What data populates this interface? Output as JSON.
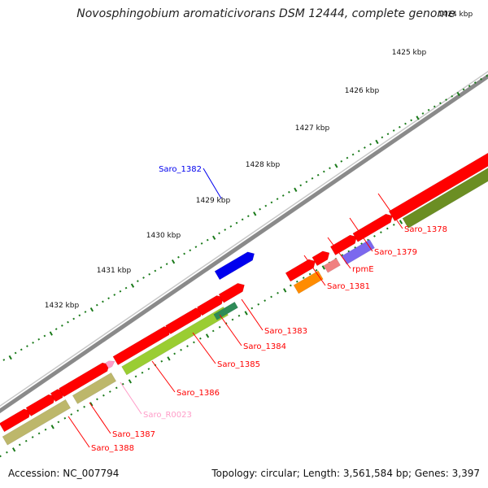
{
  "title": "Novosphingobium aromaticivorans DSM 12444, complete genome",
  "footer": {
    "accession": "Accession: NC_007794",
    "summary": "Topology: circular; Length: 3,561,584 bp; Genes: 3,397"
  },
  "ticks": [
    "1424 kbp",
    "1425 kbp",
    "1426 kbp",
    "1427 kbp",
    "1428 kbp",
    "1429 kbp",
    "1430 kbp",
    "1431 kbp",
    "1432 kbp"
  ],
  "colors": {
    "backbone": "#8a8a8a",
    "cds": "#ff0000",
    "rna": "#ff9cc8",
    "cds_track": "#9acd32",
    "blue": "#0000ee",
    "orange": "#ff8c00",
    "purple": "#7b68ee",
    "pink": "#f08080",
    "olive": "#6b8e23",
    "khaki": "#bdb76b",
    "dark_green": "#2e8b57",
    "dotted_green": "#1a7a1a"
  },
  "genes": [
    {
      "name": "Saro_1378",
      "color": "#ff0000"
    },
    {
      "name": "Saro_1379",
      "color": "#ff0000"
    },
    {
      "name": "rpmE",
      "color": "#ff0000"
    },
    {
      "name": "Saro_1381",
      "color": "#ff0000"
    },
    {
      "name": "Saro_1382",
      "color": "#0000ee"
    },
    {
      "name": "Saro_1383",
      "color": "#ff0000"
    },
    {
      "name": "Saro_1384",
      "color": "#ff0000"
    },
    {
      "name": "Saro_1385",
      "color": "#ff0000"
    },
    {
      "name": "Saro_1386",
      "color": "#ff0000"
    },
    {
      "name": "Saro_R0023",
      "color": "#ff9cc8"
    },
    {
      "name": "Saro_1387",
      "color": "#ff0000"
    },
    {
      "name": "Saro_1388",
      "color": "#ff0000"
    }
  ]
}
